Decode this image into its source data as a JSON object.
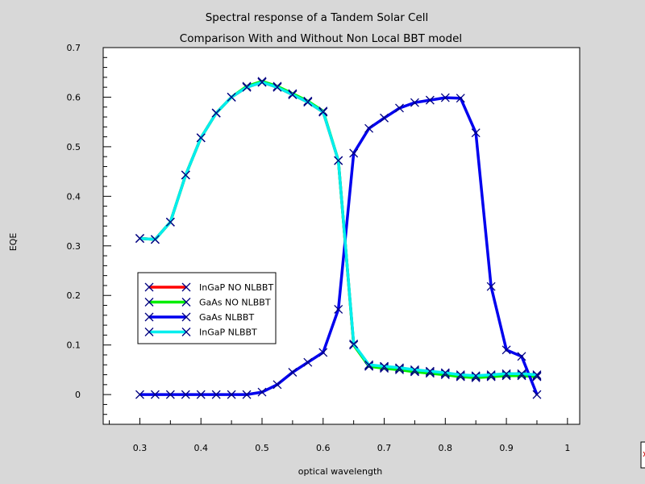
{
  "chart_data": {
    "type": "line",
    "title": "Spectral response of a Tandem Solar Cell",
    "subtitle": "Comparison With and Without Non Local BBT model",
    "xlabel": "optical wavelength",
    "ylabel": "EQE",
    "xlim": [
      0.24,
      1.02
    ],
    "ylim": [
      -0.06,
      0.7
    ],
    "xticks": [
      0.3,
      0.4,
      0.5,
      0.6,
      0.7,
      0.8,
      0.9,
      1
    ],
    "xtick_labels": [
      "0.3",
      "0.4",
      "0.5",
      "0.6",
      "0.7",
      "0.8",
      "0.9",
      "1"
    ],
    "yticks": [
      0,
      0.1,
      0.2,
      0.3,
      0.4,
      0.5,
      0.6,
      0.7
    ],
    "ytick_labels": [
      "0",
      "0.1",
      "0.2",
      "0.3",
      "0.4",
      "0.5",
      "0.6",
      "0.7"
    ],
    "grid": false,
    "legend_position": "lower-left",
    "series": [
      {
        "name": "InGaP NO NLBBT",
        "color": "#ff0000",
        "marker": "x",
        "x": [
          0.3,
          0.325,
          0.35,
          0.375,
          0.4,
          0.425,
          0.45,
          0.475,
          0.5,
          0.525,
          0.55,
          0.575,
          0.6,
          0.625,
          0.65,
          0.675,
          0.7,
          0.725,
          0.75,
          0.775,
          0.8,
          0.825,
          0.85,
          0.875,
          0.9,
          0.925,
          0.95
        ],
        "y": [
          0.315,
          0.313,
          0.348,
          0.443,
          0.518,
          0.568,
          0.6,
          0.62,
          0.63,
          0.62,
          0.605,
          0.59,
          0.57,
          0.472,
          0.1,
          0.058,
          0.055,
          0.052,
          0.048,
          0.045,
          0.042,
          0.038,
          0.036,
          0.038,
          0.04,
          0.04,
          0.038
        ]
      },
      {
        "name": "GaAs NO NLBBT",
        "color": "#00ee00",
        "marker": "x",
        "x": [
          0.3,
          0.325,
          0.35,
          0.375,
          0.4,
          0.425,
          0.45,
          0.475,
          0.5,
          0.525,
          0.55,
          0.575,
          0.6,
          0.625,
          0.65,
          0.675,
          0.7,
          0.725,
          0.75,
          0.775,
          0.8,
          0.825,
          0.85,
          0.875,
          0.9,
          0.925,
          0.95
        ],
        "y": [
          0.315,
          0.313,
          0.348,
          0.443,
          0.518,
          0.568,
          0.6,
          0.622,
          0.632,
          0.622,
          0.607,
          0.592,
          0.572,
          0.472,
          0.1,
          0.057,
          0.053,
          0.05,
          0.046,
          0.043,
          0.04,
          0.036,
          0.034,
          0.036,
          0.038,
          0.038,
          0.036
        ]
      },
      {
        "name": "GaAs NLBBT",
        "color": "#0000ee",
        "marker": "x",
        "x": [
          0.3,
          0.325,
          0.35,
          0.375,
          0.4,
          0.425,
          0.45,
          0.475,
          0.5,
          0.525,
          0.55,
          0.575,
          0.6,
          0.625,
          0.65,
          0.675,
          0.7,
          0.725,
          0.75,
          0.775,
          0.8,
          0.825,
          0.85,
          0.875,
          0.9,
          0.925,
          0.95
        ],
        "y": [
          0,
          0,
          0,
          0,
          0,
          0,
          0,
          0,
          0.005,
          0.02,
          0.045,
          0.065,
          0.085,
          0.172,
          0.487,
          0.537,
          0.558,
          0.578,
          0.589,
          0.594,
          0.599,
          0.598,
          0.528,
          0.218,
          0.09,
          0.077,
          0
        ]
      },
      {
        "name": "InGaP NLBBT",
        "color": "#00eeee",
        "marker": "x",
        "x": [
          0.3,
          0.325,
          0.35,
          0.375,
          0.4,
          0.425,
          0.45,
          0.475,
          0.5,
          0.525,
          0.55,
          0.575,
          0.6,
          0.625,
          0.65,
          0.675,
          0.7,
          0.725,
          0.75,
          0.775,
          0.8,
          0.825,
          0.85,
          0.875,
          0.9,
          0.925,
          0.95
        ],
        "y": [
          0.315,
          0.313,
          0.348,
          0.443,
          0.518,
          0.568,
          0.6,
          0.62,
          0.63,
          0.62,
          0.605,
          0.59,
          0.57,
          0.472,
          0.102,
          0.06,
          0.057,
          0.054,
          0.05,
          0.047,
          0.044,
          0.04,
          0.038,
          0.04,
          0.042,
          0.042,
          0.04
        ]
      }
    ]
  }
}
